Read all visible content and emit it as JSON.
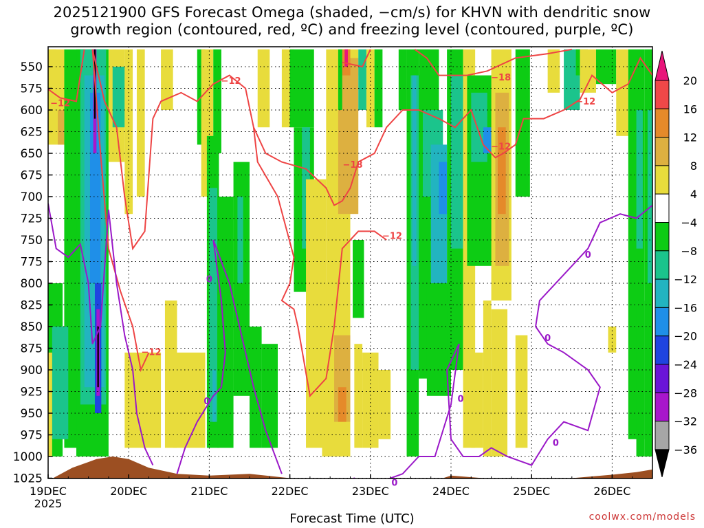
{
  "title": {
    "line1": "2025121900 GFS Forecast Omega (shaded, −cm/s) for KHVN with dendritic snow",
    "line2": "growth region (contoured, red, ºC) and freezing level (contoured, purple, ºC)"
  },
  "credit": "coolwx.com/models",
  "colors": {
    "omega_pos_4_8": "#e8dc3c",
    "omega_pos_8_12": "#ddb040",
    "omega_pos_12_16": "#e58a2a",
    "omega_pos_16_20": "#ef4848",
    "omega_pos_20": "#e8157a",
    "omega_neg_4_8": "#0dcc14",
    "omega_neg_8_12": "#1bc48c",
    "omega_neg_12_16": "#22b4c0",
    "omega_neg_16_20": "#1f8fe8",
    "omega_neg_20_24": "#1f44e0",
    "omega_neg_24_28": "#6a14d8",
    "omega_neg_28_32": "#a817cc",
    "omega_neg_32_36": "#a6a6a6",
    "omega_neg_36": "#000000",
    "dgz_contour": "#ee4444",
    "freezing_contour": "#9a18c8",
    "terrain": "#9c4f22"
  },
  "chart_data": {
    "type": "heatmap",
    "xlabel": "Forecast Time (UTC)",
    "ylabel": "",
    "x_ticks": [
      {
        "label": "19DEC",
        "sub": "2025",
        "day": 0
      },
      {
        "label": "20DEC",
        "day": 1
      },
      {
        "label": "21DEC",
        "day": 2
      },
      {
        "label": "22DEC",
        "day": 3
      },
      {
        "label": "23DEC",
        "day": 4
      },
      {
        "label": "24DEC",
        "day": 5
      },
      {
        "label": "25DEC",
        "day": 6
      },
      {
        "label": "26DEC",
        "day": 7
      }
    ],
    "xlim_days": [
      0,
      7.5
    ],
    "y_ticks": [
      "550",
      "575",
      "600",
      "625",
      "650",
      "675",
      "700",
      "725",
      "750",
      "775",
      "800",
      "825",
      "850",
      "875",
      "900",
      "925",
      "950",
      "975",
      "1000",
      "1025"
    ],
    "ylim_hpa": [
      530,
      1037
    ],
    "grid": true,
    "colorbar": {
      "labels": [
        "20",
        "16",
        "12",
        "8",
        "4",
        "−4",
        "−8",
        "−12",
        "−16",
        "−20",
        "−24",
        "−28",
        "−32",
        "−36"
      ]
    },
    "contour_labels": [
      {
        "text": "−12",
        "day": 0.15,
        "p": 593,
        "color": "dgz_contour"
      },
      {
        "text": "−12",
        "day": 2.27,
        "p": 567,
        "color": "dgz_contour"
      },
      {
        "text": "−12",
        "day": 1.28,
        "p": 880,
        "color": "dgz_contour"
      },
      {
        "text": "−18",
        "day": 3.78,
        "p": 664,
        "color": "dgz_contour"
      },
      {
        "text": "−12",
        "day": 4.27,
        "p": 746,
        "color": "dgz_contour"
      },
      {
        "text": "−18",
        "day": 5.62,
        "p": 563,
        "color": "dgz_contour"
      },
      {
        "text": "−12",
        "day": 5.62,
        "p": 643,
        "color": "dgz_contour"
      },
      {
        "text": "−12",
        "day": 6.67,
        "p": 591,
        "color": "dgz_contour"
      },
      {
        "text": "0",
        "day": 2.0,
        "p": 796,
        "color": "freezing_contour"
      },
      {
        "text": "0",
        "day": 1.97,
        "p": 937,
        "color": "freezing_contour"
      },
      {
        "text": "0",
        "day": 4.3,
        "p": 1031,
        "color": "freezing_contour"
      },
      {
        "text": "0",
        "day": 5.12,
        "p": 934,
        "color": "freezing_contour"
      },
      {
        "text": "0",
        "day": 6.2,
        "p": 864,
        "color": "freezing_contour"
      },
      {
        "text": "0",
        "day": 6.3,
        "p": 985,
        "color": "freezing_contour"
      },
      {
        "text": "0",
        "day": 6.7,
        "p": 768,
        "color": "freezing_contour"
      }
    ]
  }
}
